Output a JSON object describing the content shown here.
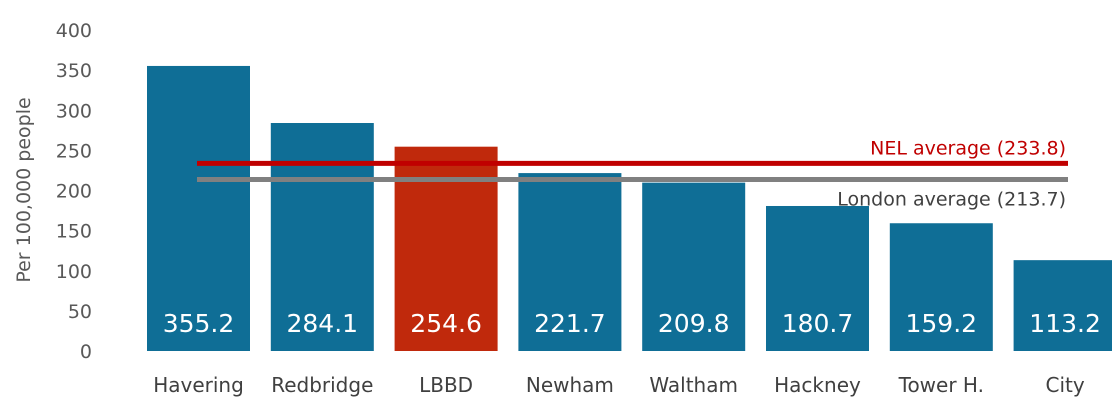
{
  "chart_data": {
    "type": "bar",
    "title": "",
    "xlabel": "",
    "ylabel": "Per 100,000 people",
    "ylim": [
      0,
      400
    ],
    "yticks": [
      "0",
      "50",
      "100",
      "150",
      "200",
      "250",
      "300",
      "350",
      "400"
    ],
    "grid": false,
    "categories": [
      "Havering",
      "Redbridge",
      "LBBD",
      "Newham",
      "Waltham",
      "Hackney",
      "Tower H.",
      "City"
    ],
    "values": [
      355.2,
      284.1,
      254.6,
      221.7,
      209.8,
      180.7,
      159.2,
      113.2
    ],
    "value_labels": [
      "355.2",
      "284.1",
      "254.6",
      "221.7",
      "209.8",
      "180.7",
      "159.2",
      "113.2"
    ],
    "highlight_category": "LBBD",
    "colors": {
      "bar": "#0F6E96",
      "highlight": "#C0290C",
      "nel_line": "#C00000",
      "london_line": "#808080"
    },
    "reference_lines": [
      {
        "label": "NEL average (233.8)",
        "value": 233.8,
        "color": "#C00000"
      },
      {
        "label": "London average (213.7)",
        "value": 213.7,
        "color": "#808080"
      }
    ]
  }
}
